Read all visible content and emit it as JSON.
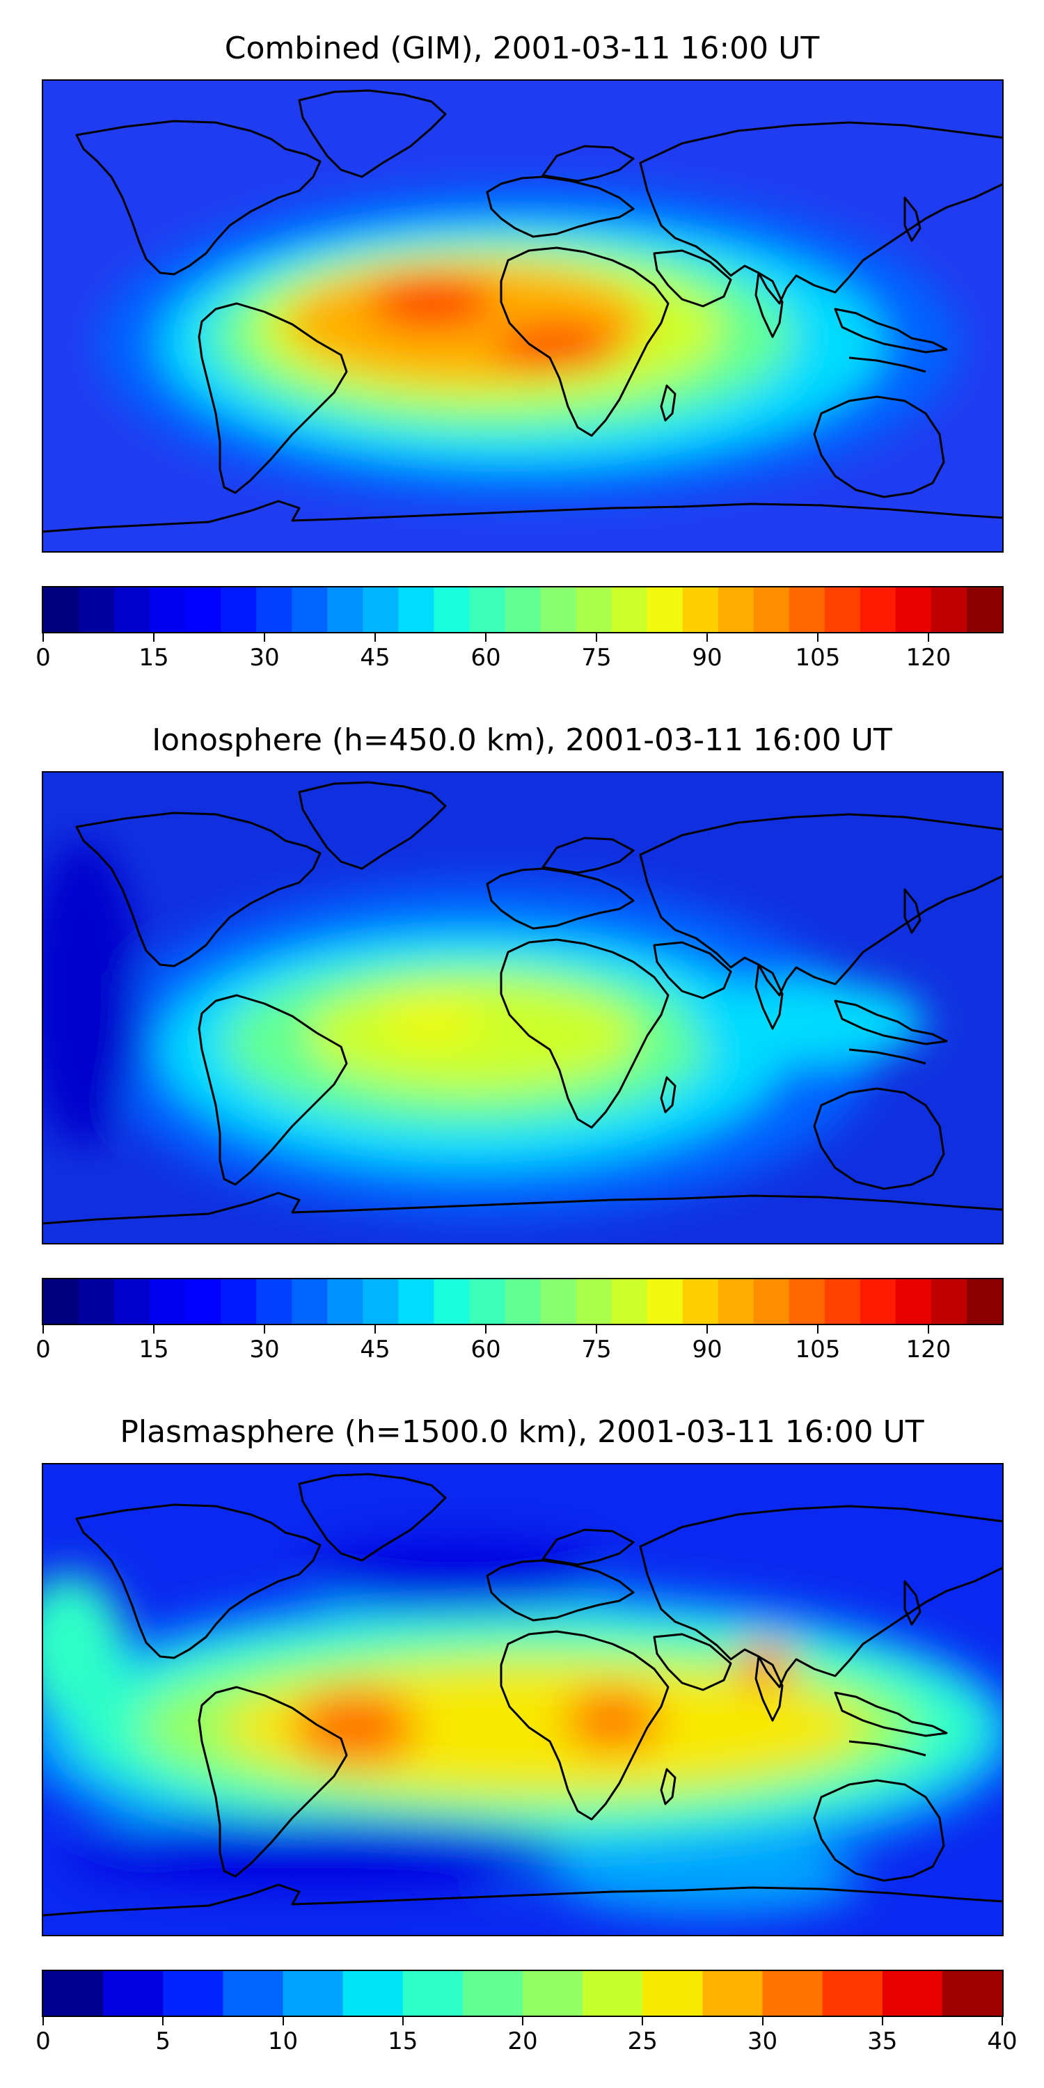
{
  "panels": [
    {
      "title": "Combined (GIM), 2001-03-11 16:00 UT",
      "background": "#1f3cf0",
      "colorbar": {
        "colors": [
          "#00007f",
          "#00009f",
          "#0000cc",
          "#0000f0",
          "#0000ff",
          "#0018ff",
          "#0040ff",
          "#0064ff",
          "#0090ff",
          "#00b4ff",
          "#00dcfe",
          "#19ffdd",
          "#3cffba",
          "#62ff94",
          "#87ff70",
          "#aaff4d",
          "#cdff2a",
          "#f0f90e",
          "#ffcf00",
          "#ffae00",
          "#ff8d00",
          "#ff6800",
          "#ff4100",
          "#ff1b00",
          "#e80000",
          "#c00000",
          "#8b0000"
        ],
        "ticks": [
          "0",
          "15",
          "30",
          "45",
          "60",
          "75",
          "90",
          "105",
          "120"
        ],
        "tick_values": [
          0,
          15,
          30,
          45,
          60,
          75,
          90,
          105,
          120
        ],
        "vmin": 0,
        "vmax": 130
      },
      "contour_levels": [
        {
          "name": "level-30",
          "color": "#0064ff"
        },
        {
          "name": "level-45",
          "color": "#00dcfe"
        },
        {
          "name": "level-60",
          "color": "#62ff94"
        },
        {
          "name": "level-75",
          "color": "#cdff2a"
        },
        {
          "name": "level-90",
          "color": "#ffae00"
        },
        {
          "name": "level-105",
          "color": "#ff4100"
        }
      ]
    },
    {
      "title": "Ionosphere  (h=450.0 km), 2001-03-11 16:00 UT",
      "background": "#1030e0",
      "colorbar": {
        "colors": [
          "#00007f",
          "#00009f",
          "#0000cc",
          "#0000f0",
          "#0000ff",
          "#0018ff",
          "#0040ff",
          "#0064ff",
          "#0090ff",
          "#00b4ff",
          "#00dcfe",
          "#19ffdd",
          "#3cffba",
          "#62ff94",
          "#87ff70",
          "#aaff4d",
          "#cdff2a",
          "#f0f90e",
          "#ffcf00",
          "#ffae00",
          "#ff8d00",
          "#ff6800",
          "#ff4100",
          "#ff1b00",
          "#e80000",
          "#c00000",
          "#8b0000"
        ],
        "ticks": [
          "0",
          "15",
          "30",
          "45",
          "60",
          "75",
          "90",
          "105",
          "120"
        ],
        "tick_values": [
          0,
          15,
          30,
          45,
          60,
          75,
          90,
          105,
          120
        ],
        "vmin": 0,
        "vmax": 130
      },
      "contour_levels": [
        {
          "name": "level-30",
          "color": "#0064ff"
        },
        {
          "name": "level-45",
          "color": "#00dcfe"
        },
        {
          "name": "level-60",
          "color": "#62ff94"
        },
        {
          "name": "level-75",
          "color": "#cdff2a"
        },
        {
          "name": "level-85",
          "color": "#f0f90e"
        }
      ]
    },
    {
      "title": "Plasmasphere (h=1500.0 km), 2001-03-11 16:00 UT",
      "background": "#0a28f0",
      "colorbar": {
        "colors": [
          "#00008f",
          "#0000e0",
          "#0024ff",
          "#0064ff",
          "#00a4ff",
          "#00e4f8",
          "#2effc8",
          "#62ff94",
          "#94ff62",
          "#c8ff2e",
          "#f8e900",
          "#ffb000",
          "#ff7300",
          "#ff3a00",
          "#e80000",
          "#9f0000"
        ],
        "ticks": [
          "0",
          "5",
          "10",
          "15",
          "20",
          "25",
          "30",
          "35",
          "40"
        ],
        "tick_values": [
          0,
          5,
          10,
          15,
          20,
          25,
          30,
          35,
          40
        ],
        "vmin": 0,
        "vmax": 40
      },
      "contour_levels": [
        {
          "name": "level-10",
          "color": "#00a4ff"
        },
        {
          "name": "level-15",
          "color": "#2effc8"
        },
        {
          "name": "level-20",
          "color": "#94ff62"
        },
        {
          "name": "level-25",
          "color": "#f8e900"
        },
        {
          "name": "level-30",
          "color": "#ff7300"
        }
      ]
    }
  ]
}
